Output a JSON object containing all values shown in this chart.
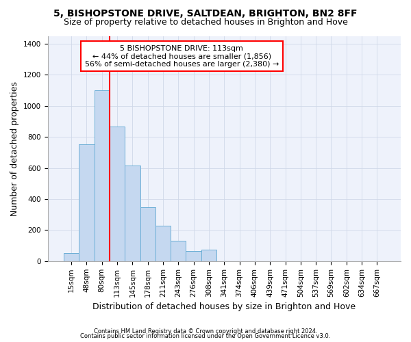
{
  "title1": "5, BISHOPSTONE DRIVE, SALTDEAN, BRIGHTON, BN2 8FF",
  "title2": "Size of property relative to detached houses in Brighton and Hove",
  "xlabel": "Distribution of detached houses by size in Brighton and Hove",
  "ylabel": "Number of detached properties",
  "footnote1": "Contains HM Land Registry data © Crown copyright and database right 2024.",
  "footnote2": "Contains public sector information licensed under the Open Government Licence v3.0.",
  "annotation_line1": "5 BISHOPSTONE DRIVE: 113sqm",
  "annotation_line2": "← 44% of detached houses are smaller (1,856)",
  "annotation_line3": "56% of semi-detached houses are larger (2,380) →",
  "bar_labels": [
    "15sqm",
    "48sqm",
    "80sqm",
    "113sqm",
    "145sqm",
    "178sqm",
    "211sqm",
    "243sqm",
    "276sqm",
    "308sqm",
    "341sqm",
    "374sqm",
    "406sqm",
    "439sqm",
    "471sqm",
    "504sqm",
    "537sqm",
    "569sqm",
    "602sqm",
    "634sqm",
    "667sqm"
  ],
  "bar_values": [
    50,
    750,
    1100,
    865,
    615,
    345,
    230,
    130,
    65,
    75,
    0,
    0,
    0,
    0,
    0,
    0,
    0,
    0,
    0,
    0,
    0
  ],
  "bar_color": "#c5d8f0",
  "bar_edge_color": "#6baed6",
  "red_line_index": 2.5,
  "ylim": [
    0,
    1450
  ],
  "yticks": [
    0,
    200,
    400,
    600,
    800,
    1000,
    1200,
    1400
  ],
  "background_color": "#eef2fb",
  "title1_fontsize": 10,
  "title2_fontsize": 9,
  "axis_label_fontsize": 9,
  "tick_fontsize": 7.5,
  "footnote_fontsize": 6,
  "annotation_fontsize": 8
}
